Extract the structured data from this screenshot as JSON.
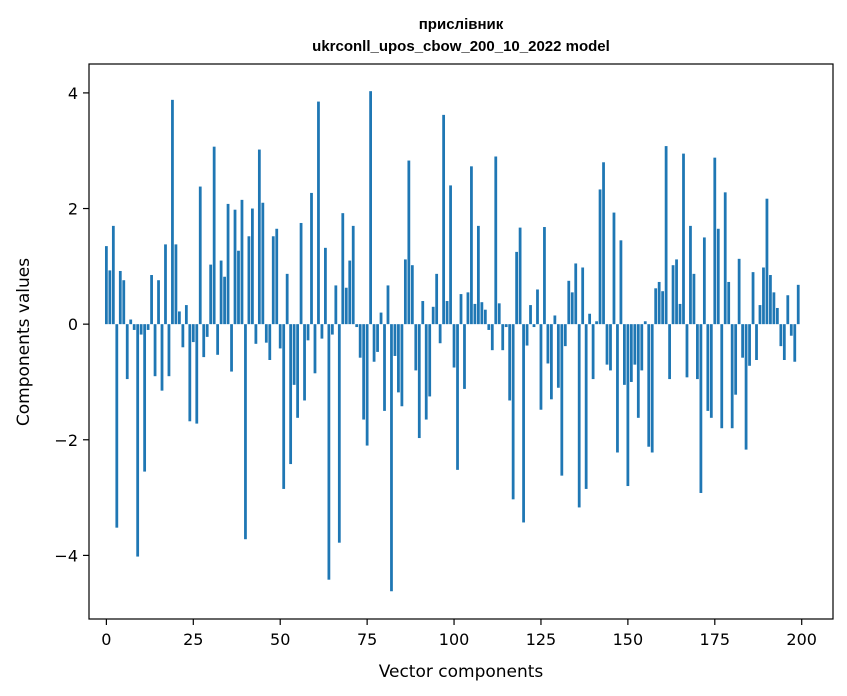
{
  "chart_data": {
    "type": "bar",
    "title": "прислівник",
    "subtitle": "ukrconll_upos_cbow_200_10_2022 model",
    "xlabel": "Vector components",
    "ylabel": "Components values",
    "xlim": [
      -5,
      209
    ],
    "ylim": [
      -5.1,
      4.5
    ],
    "xticks": [
      0,
      25,
      50,
      75,
      100,
      125,
      150,
      175,
      200
    ],
    "xtick_labels": [
      "0",
      "25",
      "50",
      "75",
      "100",
      "125",
      "150",
      "175",
      "200"
    ],
    "yticks": [
      -4,
      -2,
      0,
      2,
      4
    ],
    "ytick_labels": [
      "−4",
      "−2",
      "0",
      "2",
      "4"
    ],
    "bar_color": "#1f77b4",
    "grid": false,
    "x": [
      0,
      1,
      2,
      3,
      4,
      5,
      6,
      7,
      8,
      9,
      10,
      11,
      12,
      13,
      14,
      15,
      16,
      17,
      18,
      19,
      20,
      21,
      22,
      23,
      24,
      25,
      26,
      27,
      28,
      29,
      30,
      31,
      32,
      33,
      34,
      35,
      36,
      37,
      38,
      39,
      40,
      41,
      42,
      43,
      44,
      45,
      46,
      47,
      48,
      49,
      50,
      51,
      52,
      53,
      54,
      55,
      56,
      57,
      58,
      59,
      60,
      61,
      62,
      63,
      64,
      65,
      66,
      67,
      68,
      69,
      70,
      71,
      72,
      73,
      74,
      75,
      76,
      77,
      78,
      79,
      80,
      81,
      82,
      83,
      84,
      85,
      86,
      87,
      88,
      89,
      90,
      91,
      92,
      93,
      94,
      95,
      96,
      97,
      98,
      99,
      100,
      101,
      102,
      103,
      104,
      105,
      106,
      107,
      108,
      109,
      110,
      111,
      112,
      113,
      114,
      115,
      116,
      117,
      118,
      119,
      120,
      121,
      122,
      123,
      124,
      125,
      126,
      127,
      128,
      129,
      130,
      131,
      132,
      133,
      134,
      135,
      136,
      137,
      138,
      139,
      140,
      141,
      142,
      143,
      144,
      145,
      146,
      147,
      148,
      149,
      150,
      151,
      152,
      153,
      154,
      155,
      156,
      157,
      158,
      159,
      160,
      161,
      162,
      163,
      164,
      165,
      166,
      167,
      168,
      169,
      170,
      171,
      172,
      173,
      174,
      175,
      176,
      177,
      178,
      179,
      180,
      181,
      182,
      183,
      184,
      185,
      186,
      187,
      188,
      189,
      190,
      191,
      192,
      193,
      194,
      195,
      196,
      197,
      198,
      199
    ],
    "values": [
      1.35,
      0.93,
      1.7,
      -3.52,
      0.92,
      0.76,
      -0.95,
      0.08,
      -0.1,
      -4.02,
      -0.18,
      -2.55,
      -0.1,
      0.85,
      -0.9,
      0.76,
      -1.15,
      1.38,
      -0.9,
      3.88,
      1.38,
      0.22,
      -0.4,
      0.33,
      -1.68,
      -0.31,
      -1.72,
      2.38,
      -0.57,
      -0.22,
      1.03,
      3.07,
      -0.53,
      1.1,
      0.82,
      2.08,
      -0.82,
      1.98,
      1.27,
      2.15,
      -3.72,
      1.52,
      2.0,
      -0.34,
      3.02,
      2.1,
      -0.32,
      -0.62,
      1.52,
      1.65,
      -0.42,
      -2.85,
      0.87,
      -2.42,
      -1.05,
      -1.62,
      1.75,
      -1.32,
      -0.28,
      2.27,
      -0.85,
      3.85,
      -0.25,
      1.32,
      -4.42,
      -0.18,
      0.67,
      -3.78,
      1.92,
      0.63,
      1.1,
      1.7,
      -0.05,
      -0.58,
      -1.65,
      -2.1,
      4.03,
      -0.65,
      -0.48,
      0.2,
      -1.5,
      0.67,
      -4.62,
      -0.55,
      -1.18,
      -1.42,
      1.12,
      2.83,
      1.02,
      -0.8,
      -1.97,
      0.4,
      -1.65,
      -1.25,
      0.3,
      0.87,
      -0.33,
      3.62,
      0.4,
      2.4,
      -0.75,
      -2.52,
      0.52,
      -1.12,
      0.55,
      2.73,
      0.35,
      1.7,
      0.38,
      0.25,
      -0.1,
      -0.45,
      2.9,
      0.36,
      -0.45,
      -0.05,
      -1.32,
      -3.03,
      1.25,
      1.67,
      -3.43,
      -0.37,
      0.33,
      -0.05,
      0.6,
      -1.48,
      1.68,
      -0.68,
      -1.3,
      0.15,
      -1.1,
      -2.62,
      -0.38,
      0.75,
      0.55,
      1.05,
      -3.17,
      0.98,
      -2.85,
      0.18,
      -0.95,
      0.05,
      2.33,
      2.8,
      -0.7,
      -0.8,
      1.93,
      -2.22,
      1.45,
      -1.05,
      -2.8,
      -1.0,
      -0.7,
      -1.62,
      -0.8,
      0.05,
      -2.12,
      -2.22,
      0.62,
      0.73,
      0.57,
      3.08,
      -0.95,
      1.02,
      1.12,
      0.35,
      2.95,
      -0.92,
      1.7,
      0.87,
      -0.95,
      -2.92,
      1.5,
      -1.5,
      -1.62,
      2.88,
      1.65,
      -1.8,
      2.28,
      0.73,
      -1.8,
      -1.22,
      1.13,
      -0.58,
      -2.17,
      -0.72,
      0.9,
      -0.62,
      0.33,
      0.98,
      2.17,
      0.85,
      0.55,
      0.28,
      -0.38,
      -0.62,
      0.5,
      -0.2,
      -0.65,
      0.68
    ]
  }
}
